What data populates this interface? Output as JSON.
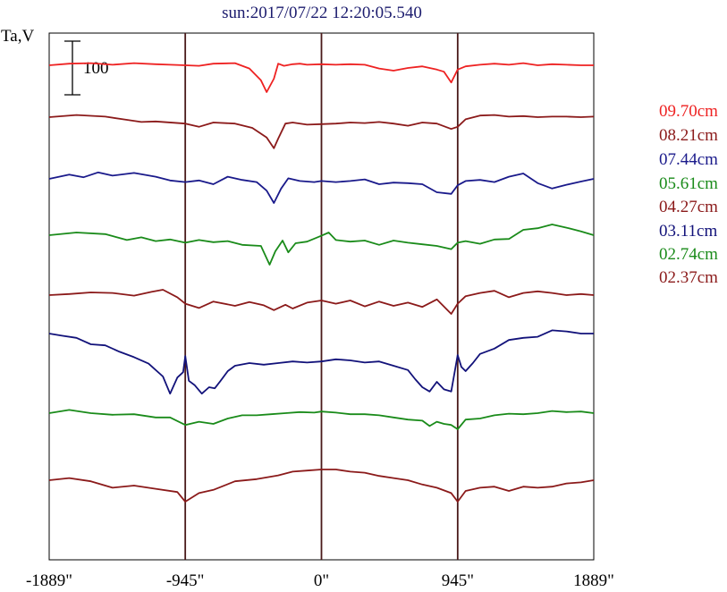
{
  "chart_data": {
    "type": "line",
    "title": "sun:2017/07/22 12:20:05.540",
    "ylabel": "Ta,V",
    "scale_bar_label": "100",
    "scale_bar_value": 100,
    "xlim": [
      -1889,
      1889
    ],
    "x_ticks": [
      {
        "value": -1889,
        "label": "-1889\""
      },
      {
        "value": -945,
        "label": "-945\""
      },
      {
        "value": 0,
        "label": "0\""
      },
      {
        "value": 945,
        "label": "945\""
      },
      {
        "value": 1889,
        "label": "1889\""
      }
    ],
    "vertical_lines": [
      -945,
      0,
      945
    ],
    "legend_position": "right",
    "grid": false,
    "series": [
      {
        "name": "09.70cm",
        "color": "#ee2222",
        "x": [
          -1889,
          -1750,
          -1600,
          -1450,
          -1300,
          -1150,
          -1050,
          -945,
          -850,
          -750,
          -600,
          -500,
          -420,
          -380,
          -330,
          -300,
          -260,
          -200,
          -150,
          -100,
          0,
          100,
          200,
          300,
          400,
          500,
          600,
          700,
          800,
          850,
          900,
          945,
          1000,
          1100,
          1200,
          1300,
          1400,
          1500,
          1600,
          1700,
          1800,
          1889
        ],
        "y": [
          0,
          3,
          4,
          1,
          4,
          2,
          1,
          0,
          -1,
          3,
          4,
          -6,
          -28,
          -50,
          -25,
          3,
          -1,
          2,
          3,
          1,
          2,
          1,
          2,
          1,
          -6,
          -10,
          -5,
          -2,
          -8,
          -12,
          -32,
          -8,
          -2,
          1,
          3,
          1,
          4,
          0,
          2,
          1,
          0,
          0
        ]
      },
      {
        "name": "08.21cm",
        "color": "#8b1a1a",
        "x": [
          -1889,
          -1700,
          -1500,
          -1350,
          -1250,
          -1150,
          -945,
          -850,
          -750,
          -600,
          -480,
          -380,
          -330,
          -300,
          -250,
          -200,
          -100,
          0,
          100,
          200,
          300,
          400,
          500,
          600,
          700,
          800,
          900,
          945,
          1000,
          1100,
          1200,
          1300,
          1400,
          1500,
          1600,
          1700,
          1800,
          1889
        ],
        "y": [
          0,
          4,
          1,
          -5,
          -9,
          -8,
          -12,
          -18,
          -10,
          -12,
          -20,
          -38,
          -58,
          -40,
          -12,
          -10,
          -14,
          -13,
          -12,
          -10,
          -11,
          -9,
          -12,
          -16,
          -10,
          -12,
          -22,
          -18,
          -4,
          3,
          4,
          1,
          2,
          0,
          1,
          1,
          0,
          1
        ]
      },
      {
        "name": "07.44cm",
        "color": "#1a1a8b",
        "x": [
          -1889,
          -1750,
          -1650,
          -1550,
          -1450,
          -1300,
          -1150,
          -1050,
          -945,
          -850,
          -750,
          -650,
          -550,
          -450,
          -380,
          -330,
          -280,
          -230,
          -150,
          -50,
          0,
          100,
          200,
          300,
          400,
          500,
          600,
          700,
          800,
          900,
          945,
          1000,
          1100,
          1200,
          1300,
          1400,
          1500,
          1600,
          1700,
          1800,
          1889
        ],
        "y": [
          0,
          8,
          3,
          12,
          6,
          11,
          4,
          -3,
          -6,
          -3,
          -10,
          4,
          -2,
          -6,
          -22,
          -45,
          -18,
          1,
          -4,
          -6,
          -4,
          -6,
          -4,
          -1,
          -10,
          -7,
          -8,
          -10,
          -25,
          -28,
          -12,
          -4,
          -2,
          -6,
          4,
          10,
          -8,
          -18,
          -11,
          -5,
          0
        ]
      },
      {
        "name": "05.61cm",
        "color": "#1a8b1a",
        "x": [
          -1889,
          -1700,
          -1500,
          -1350,
          -1250,
          -1150,
          -1050,
          -945,
          -850,
          -750,
          -650,
          -550,
          -420,
          -360,
          -320,
          -270,
          -230,
          -180,
          -100,
          0,
          50,
          100,
          200,
          300,
          400,
          500,
          600,
          700,
          800,
          900,
          945,
          1000,
          1100,
          1200,
          1300,
          1400,
          1500,
          1600,
          1700,
          1800,
          1889
        ],
        "y": [
          0,
          5,
          2,
          -9,
          -4,
          -11,
          -8,
          -14,
          -9,
          -13,
          -11,
          -18,
          -20,
          -55,
          -30,
          -10,
          -32,
          -15,
          -12,
          -1,
          5,
          -9,
          -12,
          -10,
          -18,
          -10,
          -14,
          -17,
          -20,
          -26,
          -14,
          -11,
          -16,
          -8,
          -7,
          10,
          13,
          20,
          14,
          7,
          0
        ]
      },
      {
        "name": "04.27cm",
        "color": "#8b1a1a",
        "x": [
          -1889,
          -1750,
          -1600,
          -1450,
          -1300,
          -1180,
          -1100,
          -1000,
          -945,
          -850,
          -750,
          -600,
          -500,
          -400,
          -330,
          -250,
          -200,
          -100,
          0,
          100,
          200,
          300,
          400,
          500,
          600,
          700,
          800,
          900,
          945,
          1000,
          1100,
          1200,
          1300,
          1400,
          1500,
          1600,
          1700,
          1800,
          1889
        ],
        "y": [
          0,
          2,
          5,
          4,
          -1,
          6,
          10,
          -4,
          -16,
          -24,
          -12,
          -20,
          -13,
          -19,
          -28,
          -18,
          -25,
          -14,
          -10,
          -16,
          -10,
          -21,
          -12,
          -20,
          -14,
          -22,
          -8,
          -35,
          -16,
          -2,
          4,
          8,
          -4,
          4,
          7,
          4,
          0,
          2,
          0
        ]
      },
      {
        "name": "03.11cm",
        "color": "#12127a",
        "x": [
          -1889,
          -1800,
          -1700,
          -1600,
          -1500,
          -1400,
          -1300,
          -1200,
          -1100,
          -1050,
          -1000,
          -960,
          -945,
          -920,
          -880,
          -830,
          -780,
          -740,
          -700,
          -650,
          -600,
          -500,
          -400,
          -300,
          -200,
          -100,
          0,
          100,
          200,
          300,
          400,
          500,
          600,
          650,
          700,
          750,
          800,
          850,
          900,
          945,
          970,
          1000,
          1050,
          1100,
          1200,
          1300,
          1400,
          1500,
          1600,
          1700,
          1800,
          1889
        ],
        "y": [
          0,
          -4,
          -8,
          -20,
          -22,
          -34,
          -44,
          -56,
          -80,
          -112,
          -82,
          -72,
          -42,
          -88,
          -96,
          -112,
          -100,
          -102,
          -88,
          -70,
          -60,
          -55,
          -58,
          -55,
          -52,
          -54,
          -52,
          -48,
          -50,
          -54,
          -52,
          -60,
          -68,
          -85,
          -100,
          -108,
          -90,
          -104,
          -108,
          -40,
          -62,
          -70,
          -55,
          -38,
          -28,
          -12,
          -8,
          -6,
          6,
          4,
          0,
          0
        ]
      },
      {
        "name": "02.74cm",
        "color": "#1a8b1a",
        "x": [
          -1889,
          -1750,
          -1600,
          -1450,
          -1300,
          -1150,
          -1050,
          -945,
          -850,
          -750,
          -650,
          -550,
          -450,
          -350,
          -250,
          -150,
          -50,
          0,
          100,
          200,
          300,
          400,
          500,
          600,
          700,
          750,
          800,
          850,
          900,
          945,
          1000,
          1100,
          1200,
          1300,
          1400,
          1500,
          1600,
          1700,
          1800,
          1889
        ],
        "y": [
          0,
          6,
          0,
          -3,
          -2,
          -8,
          -8,
          -22,
          -16,
          -20,
          -10,
          -4,
          -4,
          -2,
          0,
          2,
          1,
          3,
          1,
          -2,
          -2,
          -4,
          -8,
          -12,
          -14,
          -24,
          -16,
          -20,
          -22,
          -30,
          -12,
          -10,
          -4,
          -1,
          -2,
          0,
          4,
          2,
          3,
          0
        ]
      },
      {
        "name": "02.37cm",
        "color": "#8b1a1a",
        "x": [
          -1889,
          -1750,
          -1600,
          -1450,
          -1300,
          -1150,
          -1000,
          -945,
          -850,
          -750,
          -600,
          -450,
          -300,
          -200,
          -100,
          0,
          100,
          200,
          300,
          400,
          500,
          600,
          700,
          800,
          900,
          945,
          1000,
          1100,
          1200,
          1300,
          1400,
          1500,
          1600,
          1700,
          1800,
          1889
        ],
        "y": [
          0,
          4,
          -2,
          -14,
          -10,
          -16,
          -22,
          -40,
          -24,
          -18,
          -2,
          2,
          9,
          16,
          18,
          20,
          20,
          16,
          14,
          8,
          4,
          0,
          -8,
          -14,
          -24,
          -40,
          -20,
          -14,
          -12,
          -20,
          -12,
          -14,
          -12,
          -6,
          -4,
          0
        ]
      }
    ]
  }
}
